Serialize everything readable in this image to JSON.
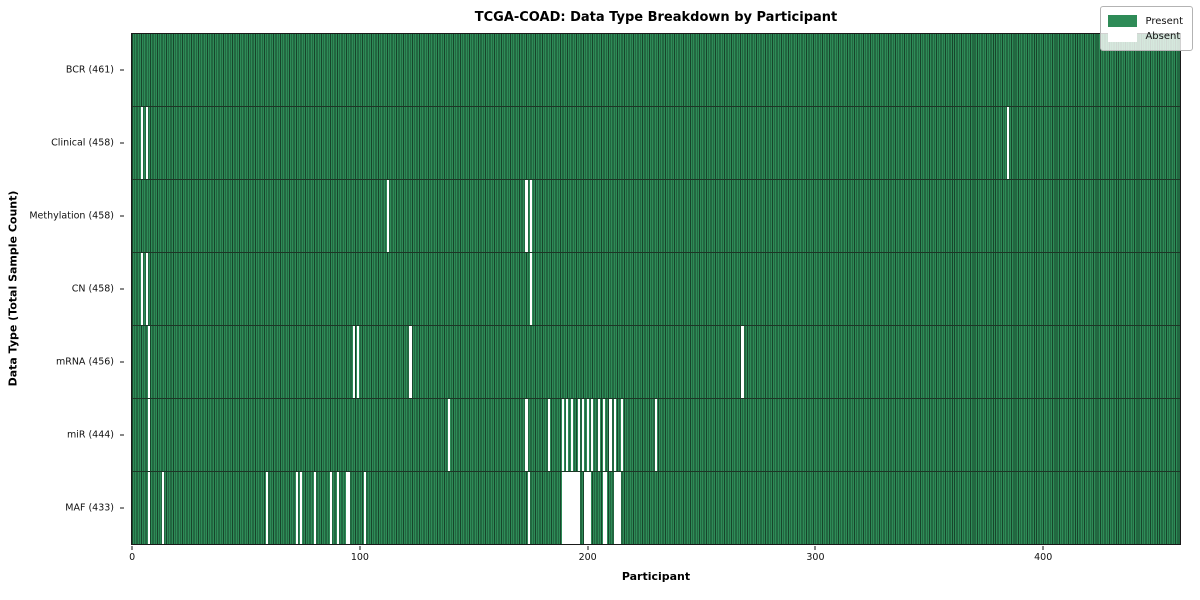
{
  "title": "TCGA-COAD: Data Type Breakdown by Participant",
  "colors": {
    "present": "#2e8b57",
    "absent": "#ffffff",
    "bar_edge_line": "rgba(0,0,0,0.50)",
    "plot_border": "#1a1a1a"
  },
  "chart_data": {
    "type": "heatmap",
    "title": "TCGA-COAD: Data Type Breakdown by Participant",
    "xlabel": "Participant",
    "ylabel": "Data Type (Total Sample Count)",
    "legend": [
      "Present",
      "Absent"
    ],
    "legend_position": "upper right",
    "n_participants": 461,
    "x_ticks": [
      0,
      100,
      200,
      300,
      400
    ],
    "xlim": [
      0,
      461
    ],
    "grid": false,
    "rows": [
      {
        "label": "BCR (461)",
        "data_type": "BCR",
        "present_count": 461,
        "absent_participants": []
      },
      {
        "label": "Clinical (458)",
        "data_type": "Clinical",
        "present_count": 458,
        "absent_participants": [
          4,
          6,
          385
        ]
      },
      {
        "label": "Methylation (458)",
        "data_type": "Methylation",
        "present_count": 458,
        "absent_participants": [
          112,
          173,
          175
        ]
      },
      {
        "label": "CN (458)",
        "data_type": "CN",
        "present_count": 458,
        "absent_participants": [
          4,
          6,
          175
        ]
      },
      {
        "label": "mRNA (456)",
        "data_type": "mRNA",
        "present_count": 456,
        "absent_participants": [
          7,
          97,
          99,
          122,
          268
        ]
      },
      {
        "label": "miR (444)",
        "data_type": "miR",
        "present_count": 444,
        "absent_participants": [
          7,
          139,
          173,
          183,
          189,
          191,
          193,
          196,
          198,
          200,
          202,
          205,
          207,
          210,
          212,
          215,
          230
        ]
      },
      {
        "label": "MAF (433)",
        "data_type": "MAF",
        "present_count": 433,
        "absent_participants": [
          7,
          13,
          59,
          72,
          74,
          80,
          87,
          90,
          94,
          95,
          102,
          174,
          189,
          190,
          191,
          192,
          193,
          194,
          195,
          196,
          199,
          200,
          201,
          207,
          208,
          212,
          213,
          214
        ]
      }
    ]
  }
}
